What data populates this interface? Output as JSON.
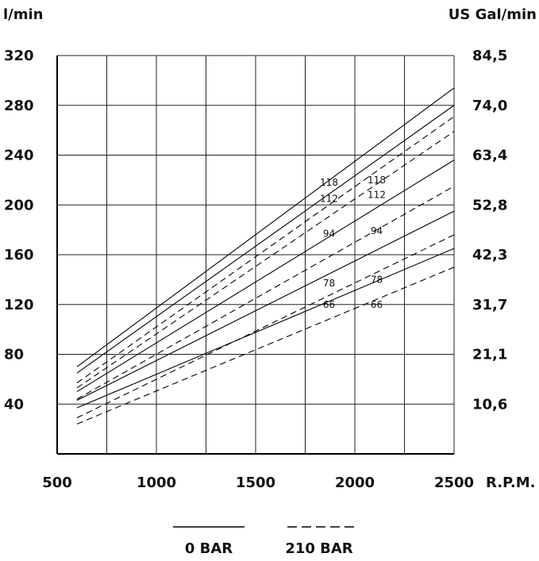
{
  "chart_data": {
    "type": "line",
    "left_unit": "l/min",
    "right_unit": "US Gal/min",
    "x_unit": "R.P.M.",
    "xlim": [
      500,
      2500
    ],
    "ylim": [
      0,
      320
    ],
    "x_ticks": [
      500,
      1000,
      1500,
      2000,
      2500
    ],
    "y_ticks": [
      40,
      80,
      120,
      160,
      200,
      240,
      280,
      320
    ],
    "y_ticks_right": [
      "10,6",
      "21,1",
      "31,7",
      "42,3",
      "52,8",
      "63,4",
      "74,0",
      "84,5"
    ],
    "grid": true,
    "legend": [
      {
        "label": "0 BAR",
        "style": "solid"
      },
      {
        "label": "210 BAR",
        "style": "dashed"
      }
    ],
    "series": [
      {
        "name": "118",
        "pressure": "0 BAR",
        "style": "solid",
        "x": [
          600,
          2500
        ],
        "y": [
          70,
          294
        ],
        "label_pos": [
          1870,
          218
        ]
      },
      {
        "name": "112",
        "pressure": "0 BAR",
        "style": "solid",
        "x": [
          600,
          2500
        ],
        "y": [
          65,
          280
        ],
        "label_pos": [
          1870,
          205
        ]
      },
      {
        "name": "94",
        "pressure": "0 BAR",
        "style": "solid",
        "x": [
          600,
          2500
        ],
        "y": [
          50,
          236
        ],
        "label_pos": [
          1870,
          177
        ]
      },
      {
        "name": "78",
        "pressure": "0 BAR",
        "style": "solid",
        "x": [
          600,
          2500
        ],
        "y": [
          43,
          195
        ],
        "label_pos": [
          1870,
          137
        ]
      },
      {
        "name": "66",
        "pressure": "0 BAR",
        "style": "solid",
        "x": [
          600,
          2500
        ],
        "y": [
          37,
          165
        ],
        "label_pos": [
          1870,
          120
        ]
      },
      {
        "name": "118",
        "pressure": "210 BAR",
        "style": "dashed",
        "x": [
          600,
          2500
        ],
        "y": [
          57,
          271
        ],
        "label_pos": [
          2110,
          220
        ]
      },
      {
        "name": "112",
        "pressure": "210 BAR",
        "style": "dashed",
        "x": [
          600,
          2500
        ],
        "y": [
          53,
          259
        ],
        "label_pos": [
          2110,
          208
        ]
      },
      {
        "name": "94",
        "pressure": "210 BAR",
        "style": "dashed",
        "x": [
          600,
          2500
        ],
        "y": [
          44,
          215
        ],
        "label_pos": [
          2110,
          179
        ]
      },
      {
        "name": "78",
        "pressure": "210 BAR",
        "style": "dashed",
        "x": [
          600,
          2500
        ],
        "y": [
          29,
          176
        ],
        "label_pos": [
          2110,
          140
        ]
      },
      {
        "name": "66",
        "pressure": "210 BAR",
        "style": "dashed",
        "x": [
          600,
          2500
        ],
        "y": [
          24,
          150
        ],
        "label_pos": [
          2110,
          120
        ]
      }
    ]
  }
}
